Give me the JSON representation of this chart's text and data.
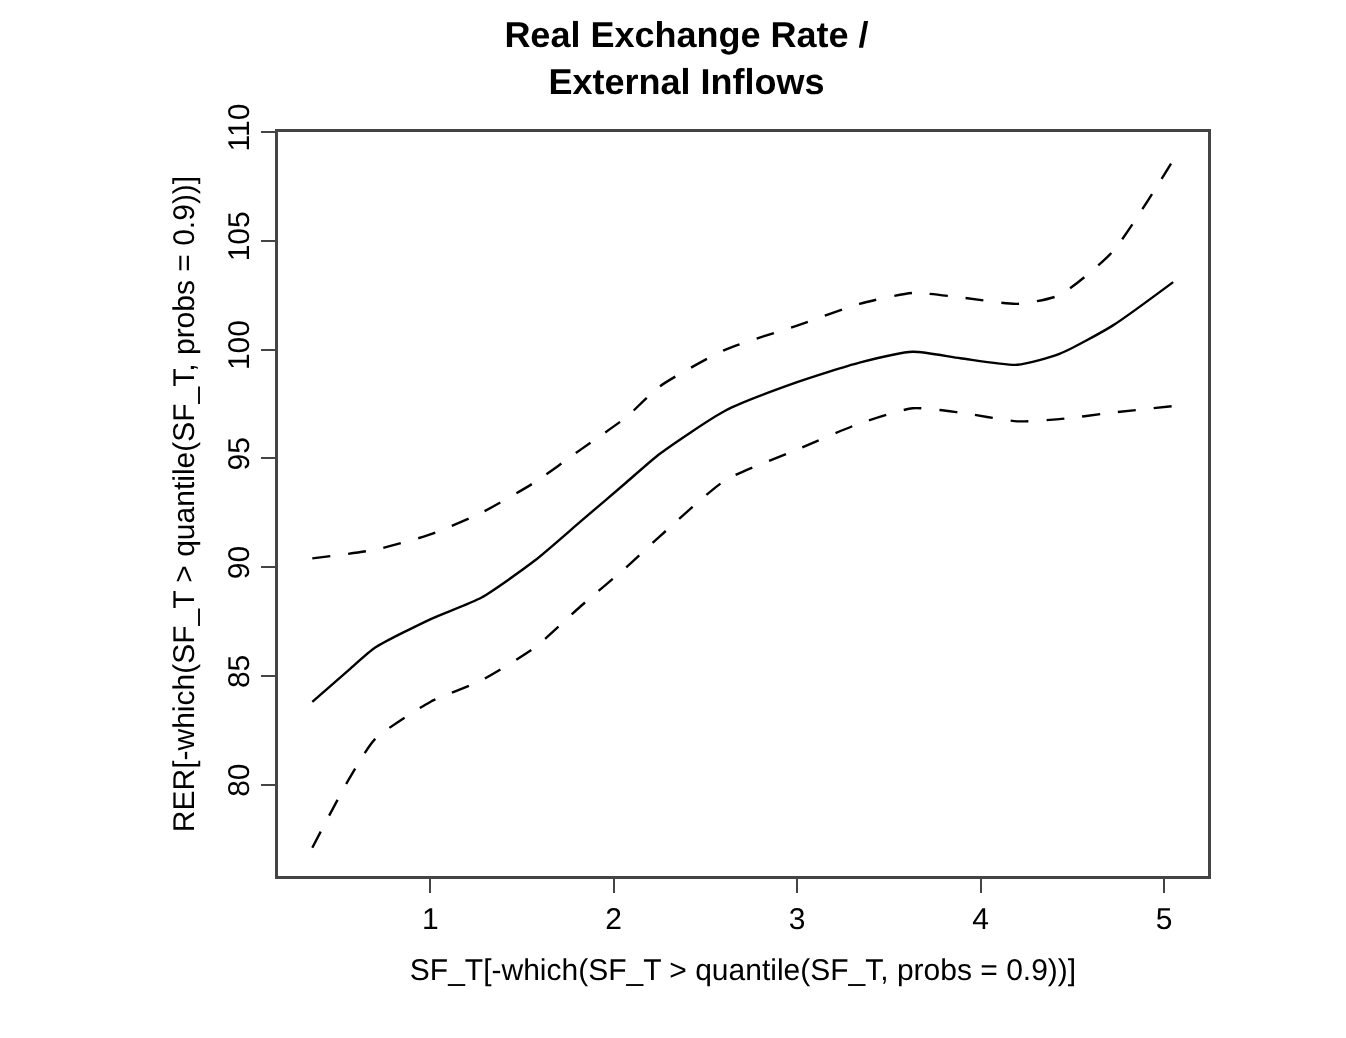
{
  "chart_data": {
    "type": "line",
    "title": "Real Exchange Rate /\nExternal Inflows",
    "xlabel": "SF_T[-which(SF_T > quantile(SF_T, probs = 0.9))]",
    "ylabel": "RER[-which(SF_T > quantile(SF_T, probs = 0.9))]",
    "xlim": [
      0.17,
      5.24
    ],
    "xticks": [
      1,
      2,
      3,
      4,
      5
    ],
    "ylim": [
      75.8,
      110.0
    ],
    "yticks": [
      80,
      85,
      90,
      95,
      100,
      105,
      110
    ],
    "grid": false,
    "series": [
      {
        "color": "#000000",
        "line_style": "solid",
        "x": [
          0.357,
          0.56,
          0.7,
          1.0,
          1.28,
          1.57,
          1.82,
          2.07,
          2.25,
          2.61,
          3.0,
          3.34,
          3.63,
          3.89,
          4.2,
          4.43,
          4.72,
          5.05
        ],
        "values": [
          83.8,
          85.3,
          86.3,
          87.6,
          88.6,
          90.3,
          92.1,
          93.9,
          95.2,
          97.2,
          98.5,
          99.4,
          99.9,
          99.6,
          99.3,
          99.8,
          101.1,
          103.1
        ]
      },
      {
        "color": "#000000",
        "line_style": "dashed",
        "x": [
          0.357,
          0.7,
          1.0,
          1.28,
          1.57,
          1.82,
          2.07,
          2.25,
          2.61,
          3.0,
          3.34,
          3.63,
          3.89,
          4.2,
          4.43,
          4.72,
          5.05
        ],
        "values": [
          90.4,
          90.8,
          91.5,
          92.5,
          93.9,
          95.4,
          96.9,
          98.3,
          100.0,
          101.1,
          102.1,
          102.6,
          102.4,
          102.1,
          102.5,
          104.5,
          108.7
        ]
      },
      {
        "color": "#000000",
        "line_style": "dashed",
        "x": [
          0.357,
          0.56,
          0.7,
          1.0,
          1.28,
          1.57,
          1.82,
          2.07,
          2.25,
          2.61,
          3.0,
          3.34,
          3.63,
          3.89,
          4.2,
          4.43,
          4.72,
          5.05
        ],
        "values": [
          77.1,
          80.3,
          82.1,
          83.8,
          84.8,
          86.3,
          88.2,
          90.0,
          91.4,
          94.0,
          95.4,
          96.6,
          97.3,
          97.1,
          96.7,
          96.8,
          97.1,
          97.4
        ]
      }
    ]
  }
}
